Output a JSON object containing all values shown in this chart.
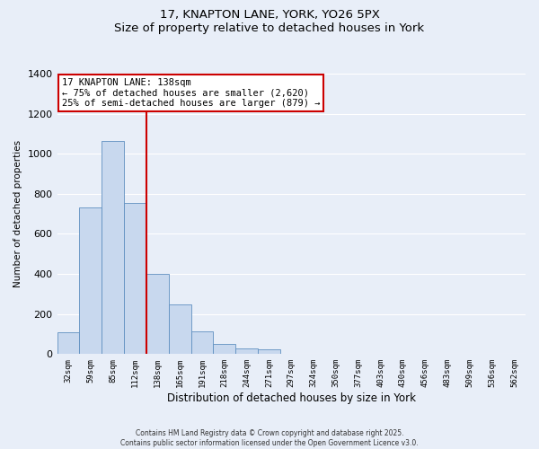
{
  "title": "17, KNAPTON LANE, YORK, YO26 5PX",
  "subtitle": "Size of property relative to detached houses in York",
  "xlabel": "Distribution of detached houses by size in York",
  "ylabel": "Number of detached properties",
  "bar_labels": [
    "32sqm",
    "59sqm",
    "85sqm",
    "112sqm",
    "138sqm",
    "165sqm",
    "191sqm",
    "218sqm",
    "244sqm",
    "271sqm",
    "297sqm",
    "324sqm",
    "350sqm",
    "377sqm",
    "403sqm",
    "430sqm",
    "456sqm",
    "483sqm",
    "509sqm",
    "536sqm",
    "562sqm"
  ],
  "bar_values": [
    110,
    730,
    1065,
    755,
    400,
    248,
    115,
    50,
    28,
    25,
    0,
    0,
    0,
    0,
    0,
    0,
    0,
    0,
    0,
    0,
    0
  ],
  "bar_color": "#c8d8ee",
  "bar_edge_color": "#6090c0",
  "vline_x_idx": 4,
  "vline_color": "#cc0000",
  "ylim": [
    0,
    1400
  ],
  "yticks": [
    0,
    200,
    400,
    600,
    800,
    1000,
    1200,
    1400
  ],
  "annotation_title": "17 KNAPTON LANE: 138sqm",
  "annotation_line1": "← 75% of detached houses are smaller (2,620)",
  "annotation_line2": "25% of semi-detached houses are larger (879) →",
  "bg_color": "#e8eef8",
  "grid_color": "#ffffff",
  "footer_line1": "Contains HM Land Registry data © Crown copyright and database right 2025.",
  "footer_line2": "Contains public sector information licensed under the Open Government Licence v3.0."
}
